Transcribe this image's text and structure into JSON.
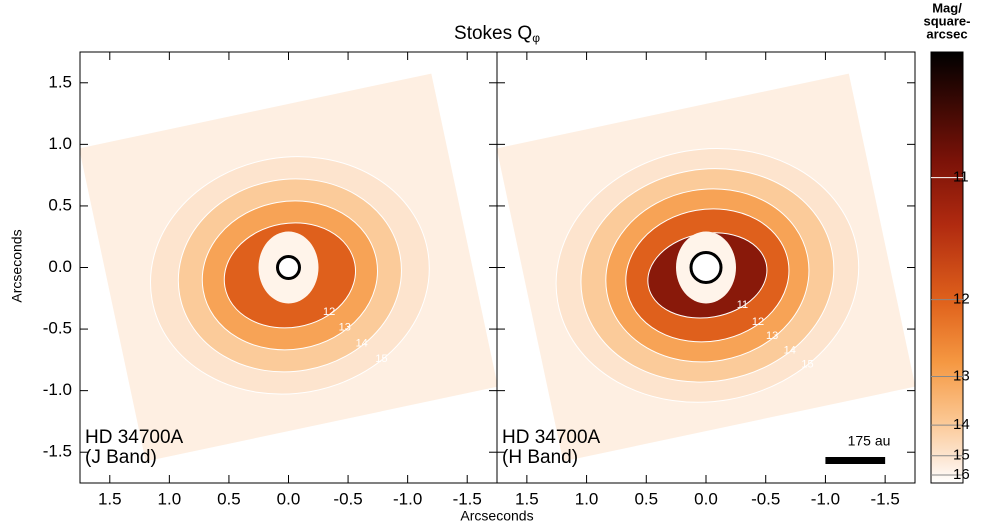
{
  "chart_data": {
    "type": "image",
    "title": "Stokes Q",
    "title_subscript": "φ",
    "xlabel": "Arcseconds",
    "ylabel": "Arcseconds",
    "xlim": [
      1.75,
      -1.75
    ],
    "ylim": [
      -1.75,
      1.75
    ],
    "xticks": [
      1.5,
      {
        "value": 1,
        "label": "1.0"
      },
      0.5,
      {
        "value": 0,
        "label": "0.0"
      },
      -0.5,
      {
        "value": -1,
        "label": "-1.0"
      },
      -1.5
    ],
    "yticks": [
      -1.5,
      {
        "value": -1,
        "label": "-1.0"
      },
      -0.5,
      {
        "value": 0,
        "label": "0.0"
      },
      0.5,
      {
        "value": 1,
        "label": "1.0"
      },
      1.5
    ],
    "panels": [
      {
        "annotation": [
          "HD 34700A",
          "(J Band)"
        ],
        "contour_levels": [
          15,
          14,
          13,
          12
        ]
      },
      {
        "annotation": [
          "HD 34700A",
          "(H Band)"
        ],
        "contour_levels": [
          15,
          14,
          13,
          12,
          11
        ],
        "scalebar_label": "175 au"
      }
    ],
    "colorbar": {
      "label": [
        "Mag/",
        "square-",
        "arcsec"
      ],
      "clim": [
        16.6,
        10.3
      ],
      "ticks": [
        11,
        12,
        13,
        14,
        15,
        16
      ]
    }
  }
}
